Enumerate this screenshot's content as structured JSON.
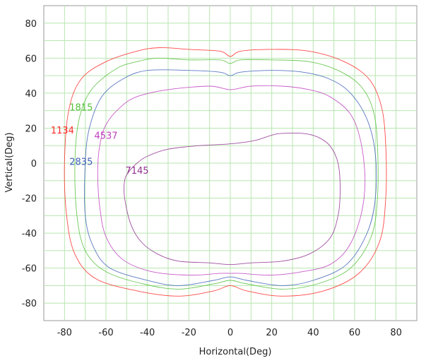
{
  "chart_data": {
    "type": "line",
    "title": "",
    "xlabel": "Horizontal(Deg)",
    "ylabel": "Vertical(Deg)",
    "xlim": [
      -90,
      90
    ],
    "ylim": [
      -90,
      90
    ],
    "x_ticks": [
      -80,
      -60,
      -40,
      -20,
      0,
      20,
      40,
      60,
      80
    ],
    "y_ticks": [
      80,
      60,
      40,
      20,
      0,
      -20,
      -40,
      -60,
      -80
    ],
    "x_tick_labels": [
      "-80",
      "-60",
      "-40",
      "-20",
      "0",
      "20",
      "40",
      "60",
      "80"
    ],
    "y_tick_labels": [
      "80",
      "60",
      "40",
      "20",
      "0",
      "-20",
      "-40",
      "-60",
      "-80"
    ],
    "grid": true,
    "grid_step": 10,
    "grid_color": "#b8e6b0",
    "legend": "none",
    "series": [
      {
        "name": "1134",
        "color": "#ff2a2a",
        "label_at": [
          -81,
          19
        ],
        "points": [
          [
            -34,
            66
          ],
          [
            -20,
            65
          ],
          [
            -5,
            64
          ],
          [
            0,
            61
          ],
          [
            5,
            64
          ],
          [
            20,
            65
          ],
          [
            38,
            64
          ],
          [
            55,
            58
          ],
          [
            67,
            48
          ],
          [
            73,
            32
          ],
          [
            75,
            10
          ],
          [
            75,
            -20
          ],
          [
            72,
            -45
          ],
          [
            62,
            -63
          ],
          [
            45,
            -73
          ],
          [
            25,
            -76
          ],
          [
            8,
            -73
          ],
          [
            0,
            -70
          ],
          [
            -8,
            -73
          ],
          [
            -25,
            -76
          ],
          [
            -45,
            -73
          ],
          [
            -65,
            -66
          ],
          [
            -75,
            -52
          ],
          [
            -79,
            -30
          ],
          [
            -80,
            0
          ],
          [
            -78,
            30
          ],
          [
            -72,
            48
          ],
          [
            -60,
            58
          ],
          [
            -45,
            64
          ],
          [
            -34,
            66
          ]
        ]
      },
      {
        "name": "1815",
        "color": "#55c03a",
        "label_at": [
          -72,
          32
        ],
        "points": [
          [
            -35,
            60
          ],
          [
            -20,
            59
          ],
          [
            -5,
            59
          ],
          [
            0,
            57
          ],
          [
            5,
            59
          ],
          [
            20,
            59
          ],
          [
            38,
            58
          ],
          [
            52,
            53
          ],
          [
            63,
            44
          ],
          [
            69,
            30
          ],
          [
            71,
            10
          ],
          [
            71,
            -20
          ],
          [
            68,
            -42
          ],
          [
            58,
            -60
          ],
          [
            42,
            -69
          ],
          [
            25,
            -72
          ],
          [
            8,
            -69
          ],
          [
            0,
            -67
          ],
          [
            -8,
            -69
          ],
          [
            -25,
            -72
          ],
          [
            -42,
            -69
          ],
          [
            -60,
            -62
          ],
          [
            -70,
            -50
          ],
          [
            -74,
            -30
          ],
          [
            -75,
            0
          ],
          [
            -73,
            25
          ],
          [
            -67,
            42
          ],
          [
            -55,
            54
          ],
          [
            -45,
            58
          ],
          [
            -35,
            60
          ]
        ]
      },
      {
        "name": "2835",
        "color": "#4060b8",
        "label_at": [
          -72,
          1
        ],
        "points": [
          [
            -40,
            53
          ],
          [
            -20,
            53
          ],
          [
            -5,
            52
          ],
          [
            0,
            50
          ],
          [
            5,
            52
          ],
          [
            20,
            53
          ],
          [
            35,
            52
          ],
          [
            48,
            48
          ],
          [
            58,
            40
          ],
          [
            66,
            25
          ],
          [
            70,
            5
          ],
          [
            70,
            -20
          ],
          [
            66,
            -40
          ],
          [
            56,
            -58
          ],
          [
            40,
            -67
          ],
          [
            25,
            -70
          ],
          [
            8,
            -67
          ],
          [
            0,
            -65
          ],
          [
            -8,
            -67
          ],
          [
            -25,
            -70
          ],
          [
            -40,
            -67
          ],
          [
            -58,
            -60
          ],
          [
            -66,
            -48
          ],
          [
            -70,
            -30
          ],
          [
            -70,
            0
          ],
          [
            -68,
            20
          ],
          [
            -62,
            38
          ],
          [
            -52,
            48
          ],
          [
            -40,
            53
          ]
        ]
      },
      {
        "name": "4537",
        "color": "#c040c0",
        "label_at": [
          -60,
          16
        ],
        "points": [
          [
            -45,
            38
          ],
          [
            -30,
            42
          ],
          [
            -10,
            44
          ],
          [
            0,
            42
          ],
          [
            10,
            44
          ],
          [
            25,
            44
          ],
          [
            38,
            42
          ],
          [
            48,
            38
          ],
          [
            58,
            28
          ],
          [
            63,
            12
          ],
          [
            65,
            -10
          ],
          [
            63,
            -30
          ],
          [
            57,
            -48
          ],
          [
            48,
            -58
          ],
          [
            35,
            -62
          ],
          [
            20,
            -64
          ],
          [
            5,
            -63
          ],
          [
            0,
            -63
          ],
          [
            -5,
            -63
          ],
          [
            -20,
            -64
          ],
          [
            -38,
            -62
          ],
          [
            -52,
            -55
          ],
          [
            -60,
            -42
          ],
          [
            -63,
            -25
          ],
          [
            -64,
            -5
          ],
          [
            -63,
            10
          ],
          [
            -60,
            22
          ],
          [
            -53,
            32
          ],
          [
            -45,
            38
          ]
        ]
      },
      {
        "name": "7145",
        "color": "#903090",
        "label_at": [
          -45,
          -4
        ],
        "points": [
          [
            -45,
            0
          ],
          [
            -40,
            4
          ],
          [
            -30,
            8
          ],
          [
            -15,
            10
          ],
          [
            0,
            11
          ],
          [
            12,
            13
          ],
          [
            20,
            16
          ],
          [
            25,
            17
          ],
          [
            35,
            17
          ],
          [
            42,
            15
          ],
          [
            48,
            10
          ],
          [
            52,
            0
          ],
          [
            53,
            -15
          ],
          [
            52,
            -30
          ],
          [
            48,
            -43
          ],
          [
            38,
            -52
          ],
          [
            25,
            -56
          ],
          [
            10,
            -57
          ],
          [
            0,
            -58
          ],
          [
            -10,
            -57
          ],
          [
            -25,
            -56
          ],
          [
            -35,
            -52
          ],
          [
            -43,
            -45
          ],
          [
            -48,
            -35
          ],
          [
            -51,
            -20
          ],
          [
            -51,
            -10
          ],
          [
            -49,
            -5
          ],
          [
            -45,
            0
          ]
        ]
      }
    ]
  }
}
